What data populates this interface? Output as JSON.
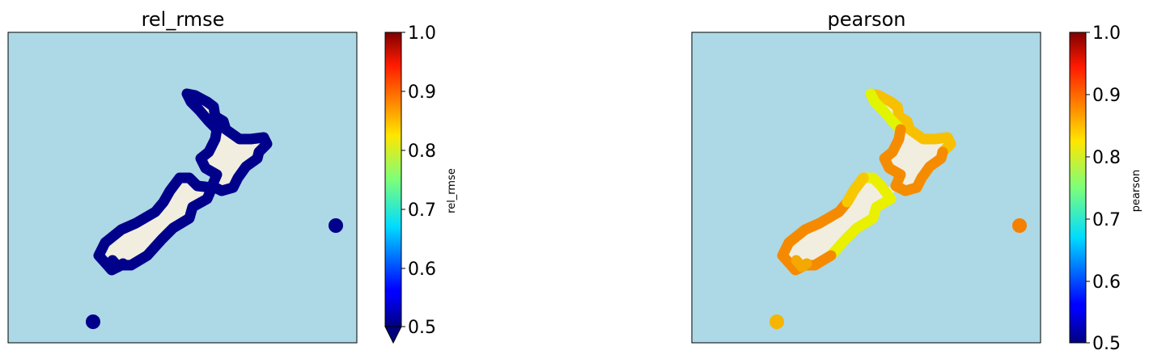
{
  "maps": [
    {
      "title": "rel_rmse",
      "colorbar_label": "rel_rmse",
      "colorbar_ticks": [
        "1.0",
        "0.9",
        "0.8",
        "0.7",
        "0.6",
        "0.5"
      ],
      "colorbar_range": [
        0.5,
        1.0
      ],
      "colorbar_extend": "min",
      "colormap": "jet",
      "land_color": "#f1eee0",
      "ocean_color": "#add8e6",
      "point_color": "#00008b"
    },
    {
      "title": "pearson",
      "colorbar_label": "pearson",
      "colorbar_ticks": [
        "1.0",
        "0.9",
        "0.8",
        "0.7",
        "0.6",
        "0.5"
      ],
      "colorbar_range": [
        0.5,
        1.0
      ],
      "colorbar_extend": "none",
      "colormap": "jet",
      "land_color": "#f1eee0",
      "ocean_color": "#add8e6",
      "point_colors": {
        "north_east": "#f7c000",
        "east_coast": "#f59000",
        "south_west": "#f58a00",
        "south_east": "#e9f000",
        "chatham": "#f58000",
        "stewart": "#f5b500"
      }
    }
  ]
}
